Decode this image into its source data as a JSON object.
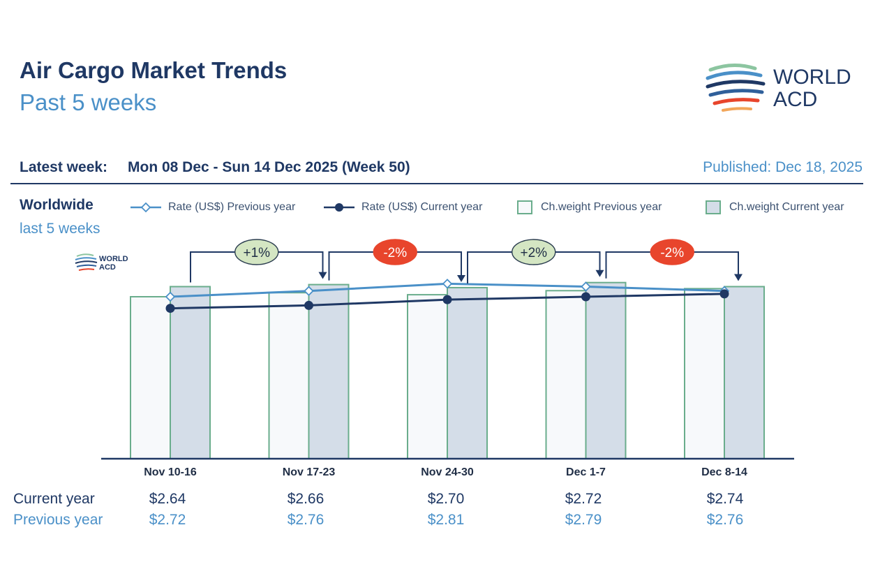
{
  "header": {
    "title": "Air Cargo Market Trends",
    "subtitle": "Past 5 weeks",
    "latest_label": "Latest week:",
    "latest_value": "Mon 08 Dec - Sun 14 Dec 2025 (Week 50)",
    "published": "Published: Dec 18, 2025"
  },
  "logo": {
    "line1": "WORLD",
    "line2": "ACD"
  },
  "panel": {
    "region": "Worldwide",
    "period": "last 5 weeks"
  },
  "legend": {
    "rate_prev": "Rate (US$) Previous year",
    "rate_cur": "Rate (US$) Current year",
    "weight_prev": "Ch.weight Previous year",
    "weight_cur": "Ch.weight Current year"
  },
  "colors": {
    "navy": "#1f3864",
    "blue": "#4a90c8",
    "bar_border": "#6aad8c",
    "bar_cur_fill": "#d4dde8",
    "bar_prev_fill": "#f7f9fb",
    "badge_pos": "#d4e6c3",
    "badge_neg": "#e8452c"
  },
  "chart_data": {
    "type": "bar",
    "categories": [
      "Nov 10-16",
      "Nov 17-23",
      "Nov 24-30",
      "Dec 1-7",
      "Dec 8-14"
    ],
    "series": [
      {
        "name": "Ch.weight Previous year",
        "kind": "bar",
        "values": [
          80,
          82,
          81,
          83,
          84
        ]
      },
      {
        "name": "Ch.weight Current year",
        "kind": "bar",
        "values": [
          85,
          86,
          84.5,
          87,
          85
        ]
      },
      {
        "name": "Rate (US$) Previous year",
        "kind": "line",
        "values": [
          2.72,
          2.76,
          2.81,
          2.79,
          2.76
        ]
      },
      {
        "name": "Rate (US$) Current year",
        "kind": "line",
        "values": [
          2.64,
          2.66,
          2.7,
          2.72,
          2.74
        ]
      }
    ],
    "changes": [
      "+1%",
      "-2%",
      "+2%",
      "-2%"
    ],
    "weight_ylim": [
      0,
      100
    ],
    "rate_ylim": [
      1.6,
      3.0
    ],
    "grid": false,
    "legend_position": "top"
  },
  "table": {
    "current_label": "Current year",
    "previous_label": "Previous year",
    "current": [
      "$2.64",
      "$2.66",
      "$2.70",
      "$2.72",
      "$2.74"
    ],
    "previous": [
      "$2.72",
      "$2.76",
      "$2.81",
      "$2.79",
      "$2.76"
    ]
  }
}
